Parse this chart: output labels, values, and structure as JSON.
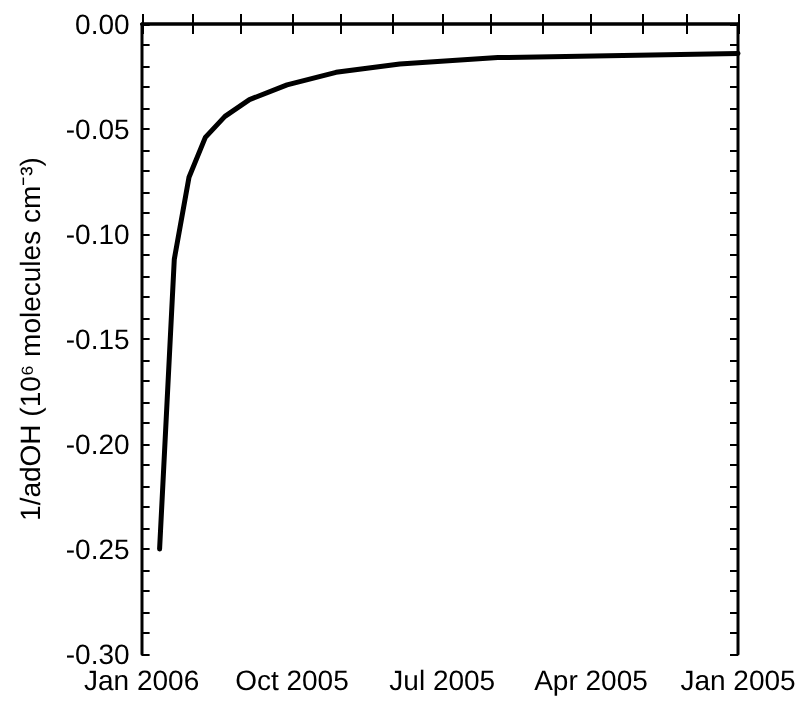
{
  "chart_data": {
    "type": "line",
    "ylabel": "1/adOH (10⁶ molecules cm⁻³)",
    "x": [
      "2005-12-21",
      "2005-12-12",
      "2005-12-03",
      "2005-11-23",
      "2005-11-11",
      "2005-10-27",
      "2005-10-04",
      "2005-09-04",
      "2005-07-27",
      "2005-05-28",
      "2005-01-01"
    ],
    "series": [
      {
        "color": "#000000",
        "values": [
          -0.25,
          -0.112,
          -0.073,
          -0.054,
          -0.044,
          -0.036,
          -0.029,
          -0.023,
          -0.019,
          -0.016,
          -0.014
        ]
      }
    ],
    "xlim": [
      "2006-01-01",
      "2005-01-01"
    ],
    "xticks": [
      {
        "value": "2006-01-01",
        "label": "Jan 2006"
      },
      {
        "value": "2005-12-01",
        "label": null
      },
      {
        "value": "2005-11-01",
        "label": null
      },
      {
        "value": "2005-10-01",
        "label": "Oct 2005"
      },
      {
        "value": "2005-09-01",
        "label": null
      },
      {
        "value": "2005-08-01",
        "label": null
      },
      {
        "value": "2005-07-01",
        "label": "Jul 2005"
      },
      {
        "value": "2005-06-01",
        "label": null
      },
      {
        "value": "2005-05-01",
        "label": null
      },
      {
        "value": "2005-04-01",
        "label": "Apr 2005"
      },
      {
        "value": "2005-03-01",
        "label": null
      },
      {
        "value": "2005-02-01",
        "label": null
      },
      {
        "value": "2005-01-01",
        "label": "Jan 2005"
      }
    ],
    "ylim": [
      -0.3,
      0
    ],
    "yticks": [
      {
        "value": -0.3,
        "label": "-0.30"
      },
      {
        "value": -0.29,
        "label": null
      },
      {
        "value": -0.28,
        "label": null
      },
      {
        "value": -0.27,
        "label": null
      },
      {
        "value": -0.26,
        "label": null
      },
      {
        "value": -0.25,
        "label": "-0.25"
      },
      {
        "value": -0.24,
        "label": null
      },
      {
        "value": -0.23,
        "label": null
      },
      {
        "value": -0.22,
        "label": null
      },
      {
        "value": -0.21,
        "label": null
      },
      {
        "value": -0.2,
        "label": "-0.20"
      },
      {
        "value": -0.19,
        "label": null
      },
      {
        "value": -0.18,
        "label": null
      },
      {
        "value": -0.17,
        "label": null
      },
      {
        "value": -0.16,
        "label": null
      },
      {
        "value": -0.15,
        "label": "-0.15"
      },
      {
        "value": -0.14,
        "label": null
      },
      {
        "value": -0.13,
        "label": null
      },
      {
        "value": -0.12,
        "label": null
      },
      {
        "value": -0.11,
        "label": null
      },
      {
        "value": -0.1,
        "label": "-0.10"
      },
      {
        "value": -0.09,
        "label": null
      },
      {
        "value": -0.08,
        "label": null
      },
      {
        "value": -0.07,
        "label": null
      },
      {
        "value": -0.06,
        "label": null
      },
      {
        "value": -0.05,
        "label": "-0.05"
      },
      {
        "value": -0.04,
        "label": null
      },
      {
        "value": -0.03,
        "label": null
      },
      {
        "value": -0.02,
        "label": null
      },
      {
        "value": -0.01,
        "label": null
      },
      {
        "value": 0,
        "label": "0.00"
      }
    ],
    "grid": false,
    "marker": "none",
    "line_style": "solid"
  }
}
